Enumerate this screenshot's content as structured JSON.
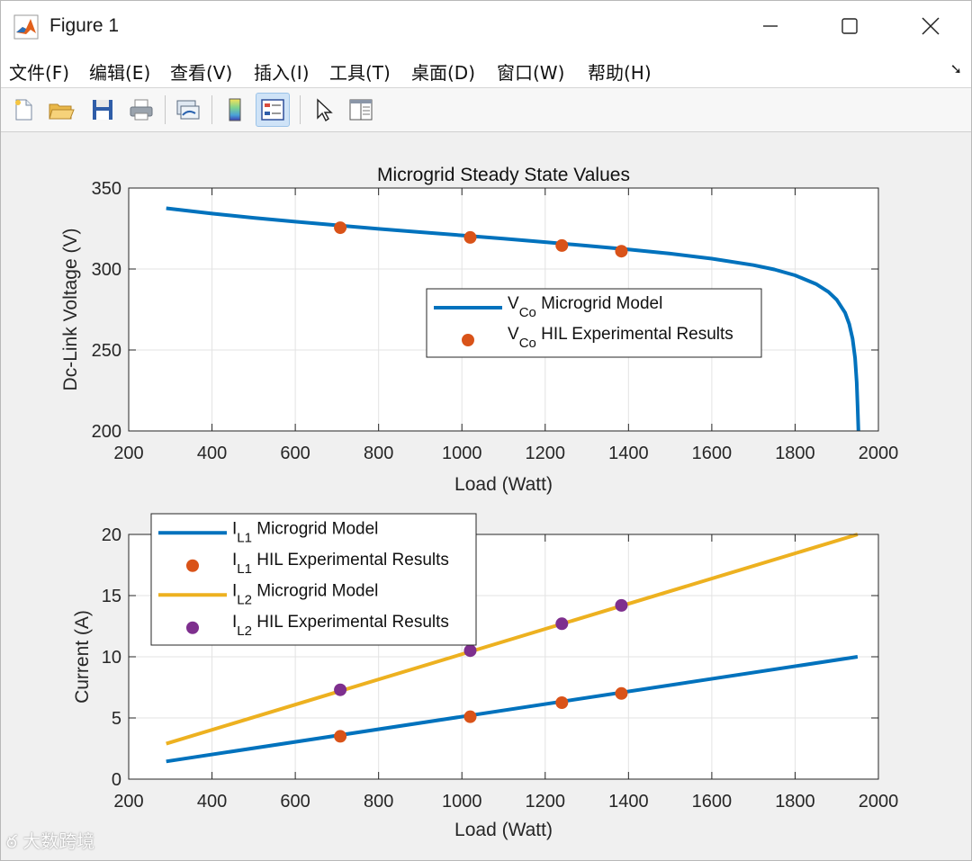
{
  "window": {
    "title": "Figure 1",
    "icon": "matlab-icon",
    "controls": [
      "minimize-icon",
      "maximize-icon",
      "close-icon"
    ]
  },
  "menu": {
    "items": [
      "文件(F)",
      "编辑(E)",
      "查看(V)",
      "插入(I)",
      "工具(T)",
      "桌面(D)",
      "窗口(W)",
      "帮助(H)"
    ],
    "overflow_icon": "dock-arrow-icon"
  },
  "toolbar": {
    "buttons": [
      "new-figure-icon",
      "open-file-icon",
      "save-icon",
      "print-icon",
      "link-plot-icon",
      "colorbar-icon",
      "legend-icon",
      "pointer-icon",
      "property-inspector-icon"
    ],
    "active": "legend-icon"
  },
  "watermark": "大数跨境",
  "chart_data": [
    {
      "type": "line",
      "title": "Microgrid Steady State Values",
      "xlabel": "Load (Watt)",
      "ylabel": "Dc-Link Voltage (V)",
      "xlim": [
        200,
        2000
      ],
      "ylim": [
        200,
        350
      ],
      "xticks": [
        "200",
        "400",
        "600",
        "800",
        "1000",
        "1200",
        "1400",
        "1600",
        "1800",
        "2000"
      ],
      "yticks": [
        "200",
        "250",
        "300",
        "350"
      ],
      "grid": true,
      "legend_position": "center-right",
      "series": [
        {
          "name": "V",
          "subscript": "Co",
          "name_suffix": " Microgrid Model",
          "kind": "line",
          "color": "#0072BD",
          "x": [
            290,
            400,
            500,
            600,
            700,
            800,
            900,
            1000,
            1100,
            1200,
            1300,
            1400,
            1500,
            1600,
            1700,
            1750,
            1800,
            1850,
            1880,
            1900,
            1920,
            1930,
            1938,
            1944,
            1948,
            1950,
            1952
          ],
          "y": [
            337.5,
            334.2,
            331.6,
            329.2,
            327.0,
            324.8,
            322.8,
            320.8,
            318.7,
            316.6,
            314.4,
            312.1,
            309.5,
            306.4,
            302.4,
            299.7,
            296.1,
            290.8,
            285.9,
            281.0,
            273.0,
            266.0,
            257.0,
            245.0,
            230.0,
            215.0,
            199.0
          ]
        },
        {
          "name": "V",
          "subscript": "Co",
          "name_suffix": " HIL Experimental Results",
          "kind": "scatter",
          "color": "#D95319",
          "x": [
            708,
            1020,
            1240,
            1383
          ],
          "y": [
            325.5,
            319.5,
            314.5,
            311.0
          ]
        }
      ]
    },
    {
      "type": "line",
      "title": "",
      "xlabel": "Load (Watt)",
      "ylabel": "Current (A)",
      "xlim": [
        200,
        2000
      ],
      "ylim": [
        0,
        20
      ],
      "xticks": [
        "200",
        "400",
        "600",
        "800",
        "1000",
        "1200",
        "1400",
        "1600",
        "1800",
        "2000"
      ],
      "yticks": [
        "0",
        "5",
        "10",
        "15",
        "20"
      ],
      "grid": true,
      "legend_position": "top-left",
      "series": [
        {
          "name": "I",
          "subscript": "L1",
          "name_suffix": " Microgrid Model",
          "kind": "line",
          "color": "#0072BD",
          "x": [
            290,
            1950
          ],
          "y": [
            1.45,
            10.0
          ]
        },
        {
          "name": "I",
          "subscript": "L1",
          "name_suffix": " HIL Experimental Results",
          "kind": "scatter",
          "color": "#D95319",
          "x": [
            708,
            1020,
            1240,
            1383
          ],
          "y": [
            3.5,
            5.1,
            6.25,
            7.0
          ]
        },
        {
          "name": "I",
          "subscript": "L2",
          "name_suffix": " Microgrid Model",
          "kind": "line",
          "color": "#EDB120",
          "x": [
            290,
            1950
          ],
          "y": [
            2.9,
            20.0
          ]
        },
        {
          "name": "I",
          "subscript": "L2",
          "name_suffix": " HIL Experimental Results",
          "kind": "scatter",
          "color": "#7E2F8E",
          "x": [
            708,
            1020,
            1240,
            1383
          ],
          "y": [
            7.3,
            10.5,
            12.7,
            14.2
          ]
        }
      ]
    }
  ]
}
